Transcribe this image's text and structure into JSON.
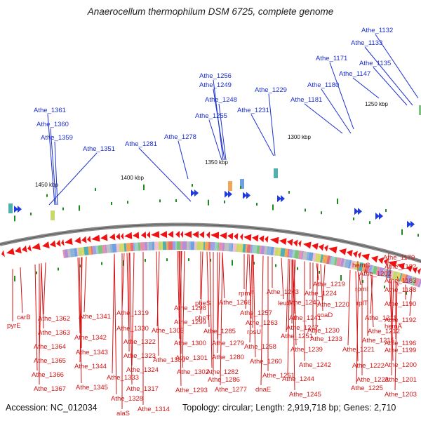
{
  "title": "Anaerocellum thermophilum DSM 6725, complete genome",
  "footer": {
    "accession": "Accession: NC_012034",
    "summary": "Topology: circular; Length: 2,919,718 bp; Genes: 2,710"
  },
  "kbp_marks": [
    {
      "label": "1450 kbp"
    },
    {
      "label": "1400 kbp"
    },
    {
      "label": "1350 kbp"
    },
    {
      "label": "1300 kbp"
    },
    {
      "label": "1250 kbp"
    }
  ],
  "forward_labels": [
    "Athe_1361",
    "Athe_1360",
    "Athe_1359",
    "Athe_1351",
    "Athe_1281",
    "Athe_1278",
    "Athe_1256",
    "Athe_1249",
    "Athe_1248",
    "Athe_1255",
    "Athe_1231",
    "Athe_1229",
    "Athe_1181",
    "Athe_1180",
    "Athe_1171",
    "Athe_1147",
    "Athe_1135",
    "Athe_1133",
    "Athe_1132"
  ],
  "reverse_labels": [
    "carB",
    "pyrE",
    "Athe_1362",
    "Athe_1363",
    "Athe_1364",
    "Athe_1365",
    "Athe_1366",
    "Athe_1367",
    "Athe_1341",
    "Athe_1342",
    "Athe_1343",
    "Athe_1344",
    "Athe_1345",
    "Athe_1330",
    "Athe_1333",
    "Athe_1328",
    "alaS",
    "Athe_1319",
    "Athe_1322",
    "Athe_1323",
    "Athe_1324",
    "Athe_1317",
    "Athe_1314",
    "Athe_1305",
    "Athe_1309",
    "Athe_1298",
    "Athe_1299",
    "Athe_1300",
    "Athe_1301",
    "Athe_1302",
    "Athe_1293",
    "pheS",
    "pheT",
    "Athe_1285",
    "Athe_1279",
    "Athe_1280",
    "Athe_1282",
    "Athe_1286",
    "Athe_1277",
    "Athe_1266",
    "rpmF",
    "Athe_1257",
    "Athe_1263",
    "rpsU",
    "Athe_1258",
    "Athe_1260",
    "Athe_1261",
    "dnaE",
    "leuS",
    "Athe_1243",
    "Athe_1240",
    "Athe_1241",
    "Athe_1247",
    "Athe_1251",
    "Athe_1219",
    "Athe_1224",
    "Athe_1220",
    "coaD",
    "Athe_1230",
    "Athe_1233",
    "Athe_1239",
    "Athe_1242",
    "Athe_1244",
    "Athe_1245",
    "hemC",
    "Athe_1202",
    "rpmI",
    "rplT",
    "Athe_1211",
    "Athe_1212",
    "Athe_1215",
    "Athe_1221",
    "Athe_1222",
    "Athe_1223",
    "Athe_1225",
    "Athe_1179",
    "Athe_1182",
    "Athe_1183",
    "Athe_1188",
    "Athe_1190",
    "Athe_1192",
    "hemA",
    "Athe_1196",
    "Athe_1199",
    "Athe_1200",
    "Athe_1201",
    "Athe_1203"
  ],
  "colors": {
    "backbone": "#8a8a8a",
    "forward_labels": "#1c2fcf",
    "reverse_labels": "#d41414",
    "reverse_genes": "#f01212",
    "forward_genes": "#1f3ae0",
    "gc_marks": "#1d8a1d"
  }
}
